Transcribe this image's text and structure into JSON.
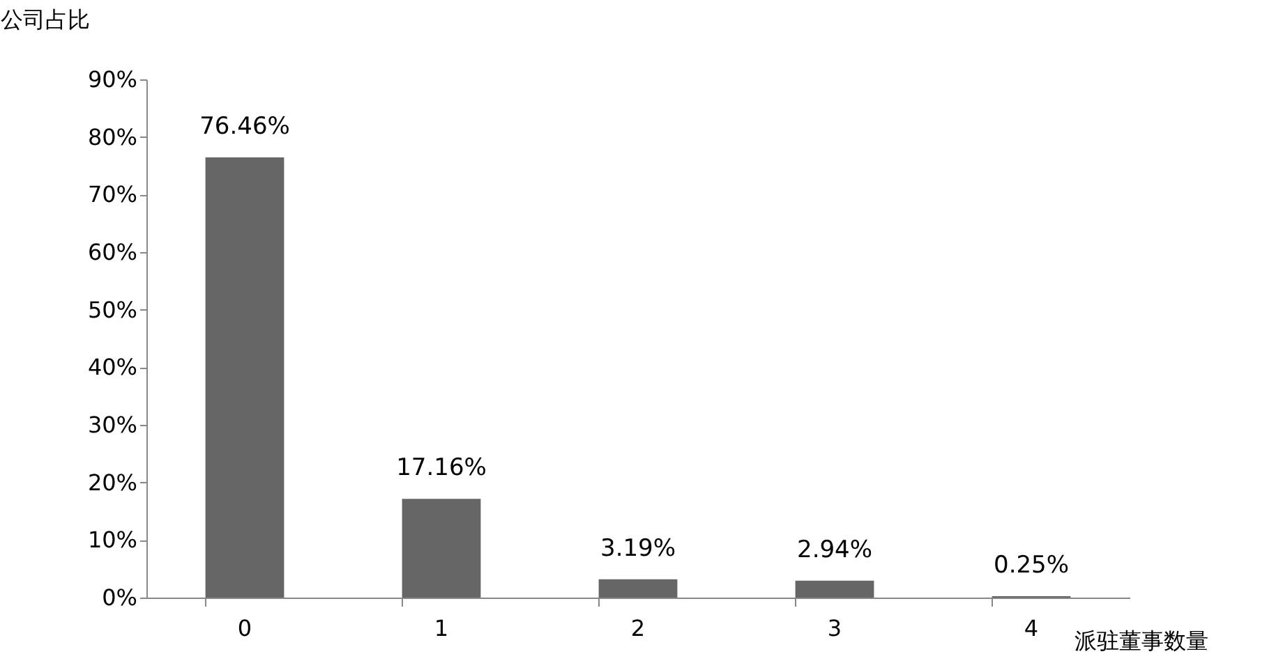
{
  "chart_data": {
    "type": "bar",
    "xlabel": "派驻董事数量",
    "ylabel": "公司占比",
    "categories": [
      "0",
      "1",
      "2",
      "3",
      "4"
    ],
    "values": [
      76.46,
      17.16,
      3.19,
      2.94,
      0.25
    ],
    "value_labels": [
      "76.46%",
      "17.16%",
      "3.19%",
      "2.94%",
      "0.25%"
    ],
    "color": "#666666",
    "ylim": [
      0,
      90
    ],
    "yticks": [
      {
        "value": 0,
        "label": "0%"
      },
      {
        "value": 10,
        "label": "10%"
      },
      {
        "value": 20,
        "label": "20%"
      },
      {
        "value": 30,
        "label": "30%"
      },
      {
        "value": 40,
        "label": "40%"
      },
      {
        "value": 50,
        "label": "50%"
      },
      {
        "value": 60,
        "label": "60%"
      },
      {
        "value": 70,
        "label": "70%"
      },
      {
        "value": 80,
        "label": "80%"
      },
      {
        "value": 90,
        "label": "90%"
      }
    ],
    "grid": false
  }
}
